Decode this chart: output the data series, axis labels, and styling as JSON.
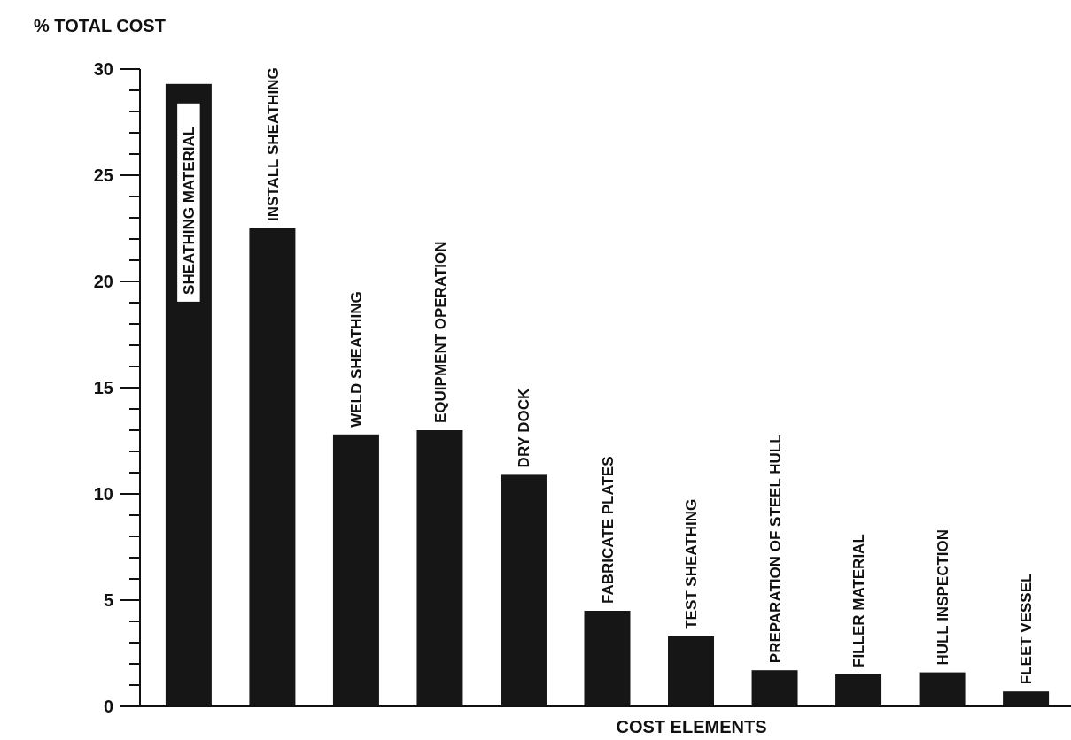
{
  "chart_data": {
    "type": "bar",
    "ylabel": "% TOTAL COST",
    "xlabel": "COST ELEMENTS",
    "categories": [
      "SHEATHING MATERIAL",
      "INSTALL SHEATHING",
      "WELD SHEATHING",
      "EQUIPMENT OPERATION",
      "DRY DOCK",
      "FABRICATE PLATES",
      "TEST SHEATHING",
      "PREPARATION OF STEEL HULL",
      "FILLER MATERIAL",
      "HULL INSPECTION",
      "FLEET VESSEL"
    ],
    "values": [
      29.3,
      22.5,
      12.8,
      13.0,
      10.9,
      4.5,
      3.3,
      1.7,
      1.5,
      1.6,
      0.7
    ],
    "color": "#161616",
    "ylim": [
      0,
      30
    ],
    "yticks": [
      0,
      {
        "value": 1,
        "label": null
      },
      {
        "value": 2,
        "label": null
      },
      {
        "value": 3,
        "label": null
      },
      {
        "value": 4,
        "label": null
      },
      5,
      {
        "value": 6,
        "label": null
      },
      {
        "value": 7,
        "label": null
      },
      {
        "value": 8,
        "label": null
      },
      {
        "value": 9,
        "label": null
      },
      10,
      {
        "value": 11,
        "label": null
      },
      {
        "value": 12,
        "label": null
      },
      {
        "value": 13,
        "label": null
      },
      {
        "value": 14,
        "label": null
      },
      15,
      {
        "value": 16,
        "label": null
      },
      {
        "value": 17,
        "label": null
      },
      {
        "value": 18,
        "label": null
      },
      {
        "value": 19,
        "label": null
      },
      20,
      {
        "value": 21,
        "label": null
      },
      {
        "value": 22,
        "label": null
      },
      {
        "value": 23,
        "label": null
      },
      {
        "value": 24,
        "label": null
      },
      25,
      {
        "value": 26,
        "label": null
      },
      {
        "value": 27,
        "label": null
      },
      {
        "value": 28,
        "label": null
      },
      {
        "value": 29,
        "label": null
      },
      30
    ],
    "grid": false
  }
}
